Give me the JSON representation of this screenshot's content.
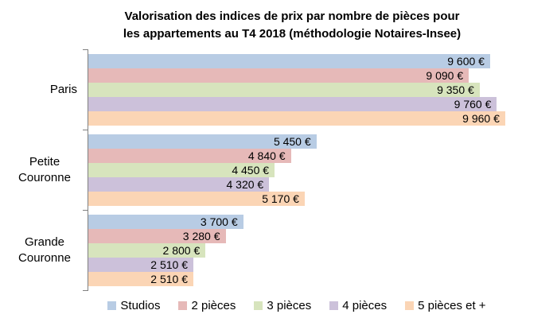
{
  "title": {
    "line1": "Valorisation des indices de prix par nombre de pièces pour",
    "line2": "les appartements au T4 2018 (méthodologie Notaires-Insee)"
  },
  "chart_data": {
    "type": "bar",
    "orientation": "horizontal",
    "title": "Valorisation des indices de prix par nombre de pièces pour les appartements au T4 2018 (méthodologie Notaires-Insee)",
    "categories": [
      "Paris",
      "Petite Couronne",
      "Grande Couronne"
    ],
    "series": [
      {
        "name": "Studios",
        "color": "#B8CCE4",
        "values": [
          9600,
          5450,
          3700
        ],
        "labels": [
          "9 600 €",
          "5 450 €",
          "3 700 €"
        ]
      },
      {
        "name": "2 pièces",
        "color": "#E6B9B8",
        "values": [
          9090,
          4840,
          3280
        ],
        "labels": [
          "9 090 €",
          "4 840 €",
          "3 280 €"
        ]
      },
      {
        "name": "3 pièces",
        "color": "#D7E4BD",
        "values": [
          9350,
          4450,
          2800
        ],
        "labels": [
          "9 350 €",
          "4 450 €",
          "2 800 €"
        ]
      },
      {
        "name": "4 pièces",
        "color": "#CCC1DA",
        "values": [
          9760,
          4320,
          2510
        ],
        "labels": [
          "9 760 €",
          "4 320 €",
          "2 510 €"
        ]
      },
      {
        "name": "5 pièces et +",
        "color": "#FBD5B5",
        "values": [
          9960,
          5170,
          2510
        ],
        "labels": [
          "9 960 €",
          "5 170 €",
          "2 510 €"
        ]
      }
    ],
    "xlim": [
      0,
      10000
    ],
    "grid": false,
    "legend_position": "bottom",
    "axis_color": "#808080",
    "value_suffix": " €"
  }
}
